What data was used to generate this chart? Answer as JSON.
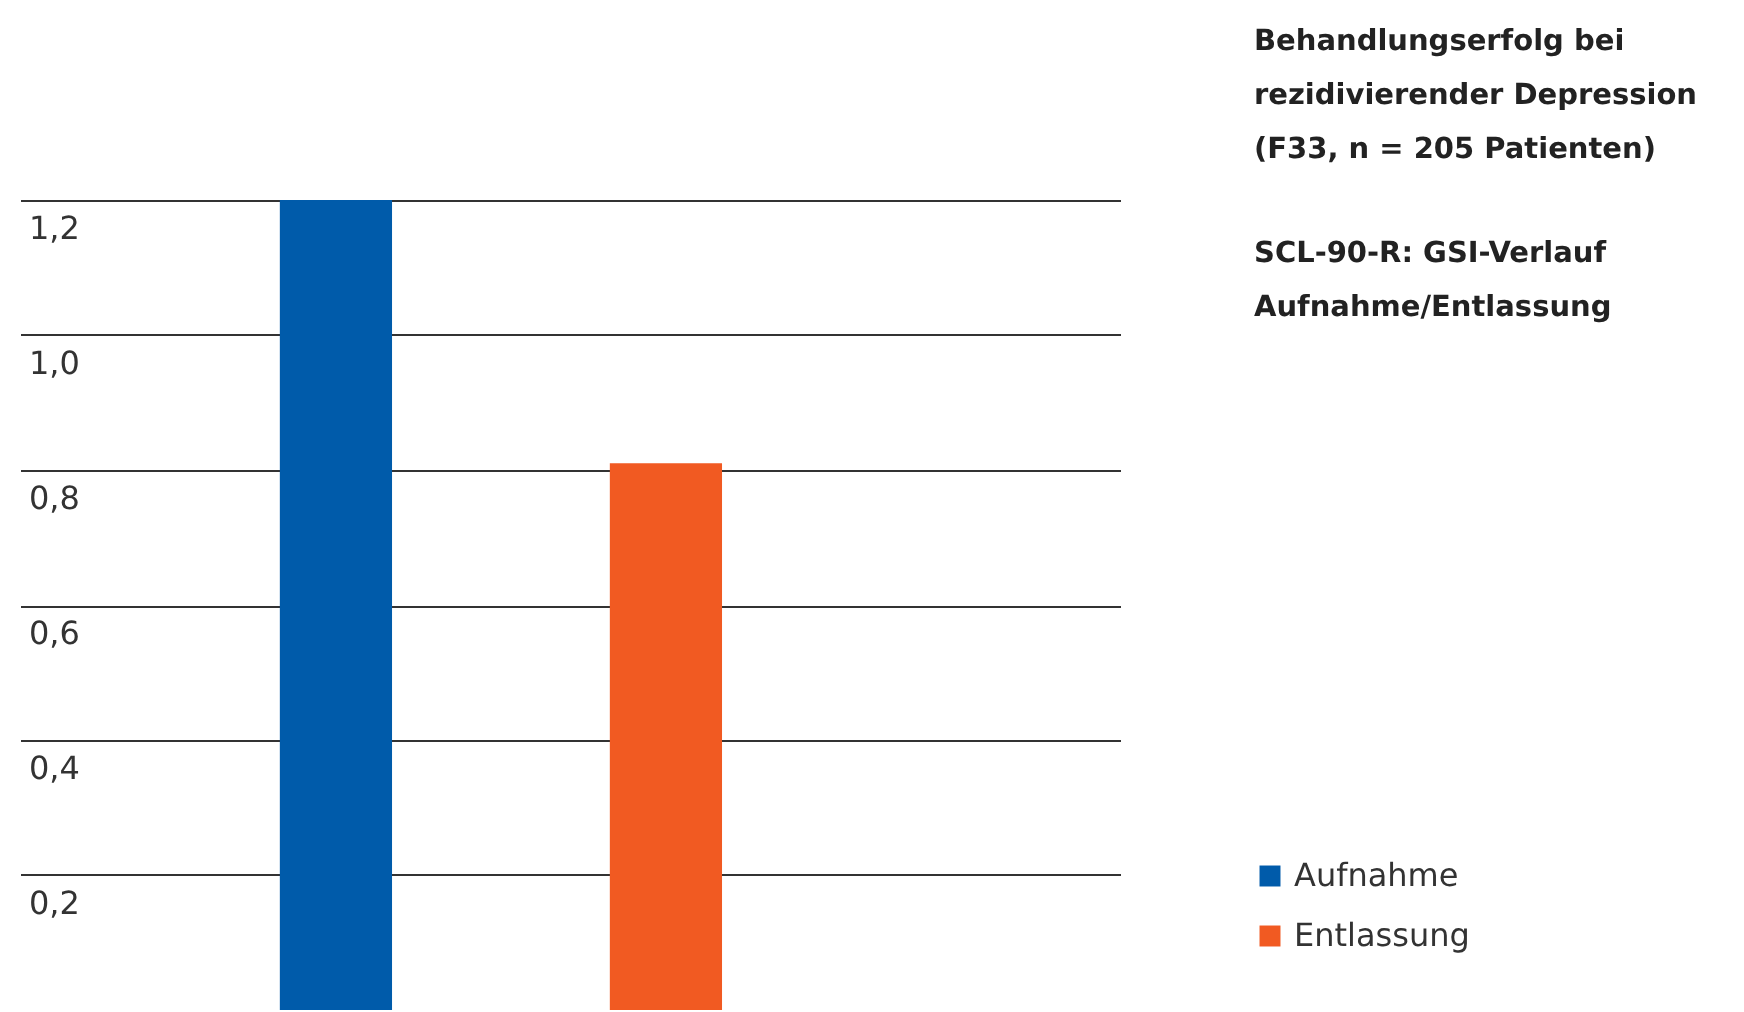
{
  "chart_data": {
    "type": "bar",
    "title": "Behandlungserfolg bei rezidivierender Depression (F33, n = 205 Patienten)",
    "subtitle": "SCL-90-R: GSI-Verlauf Aufnahme/Entlassung",
    "categories": [
      null,
      null
    ],
    "series": [
      {
        "name": "Aufnahme",
        "color": "#005baa",
        "values": [
          1.2,
          null
        ]
      },
      {
        "name": "Entlassung",
        "color": "#f15a22",
        "values": [
          null,
          0.81
        ]
      }
    ],
    "ylim": [
      0,
      1.2
    ],
    "yticks": [
      {
        "value": 0.2,
        "label": "0,2"
      },
      {
        "value": 0.4,
        "label": "0,4"
      },
      {
        "value": 0.6,
        "label": "0,6"
      },
      {
        "value": 0.8,
        "label": "0,8"
      },
      {
        "value": 1.0,
        "label": "1,0"
      },
      {
        "value": 1.2,
        "label": "1,2"
      }
    ],
    "grid": "y",
    "legend": "bottom right",
    "tick_labels": "y"
  }
}
